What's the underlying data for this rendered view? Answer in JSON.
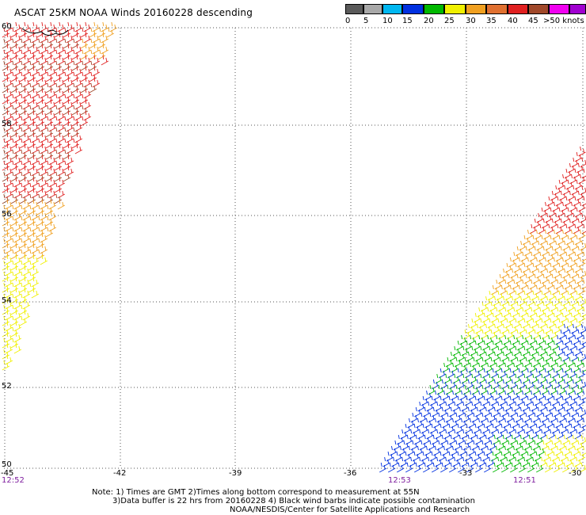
{
  "title": "ASCAT 25KM NOAA Winds 20160228 descending",
  "legend": {
    "colors": [
      "#5a5a5a",
      "#a8a8a8",
      "#00b7f0",
      "#0030e0",
      "#00b800",
      "#f0f000",
      "#f0a020",
      "#e07030",
      "#e02020",
      "#a0482a",
      "#f000f0",
      "#a000d0",
      "#400090"
    ],
    "labels": [
      "0",
      "5",
      "10",
      "15",
      "20",
      "25",
      "30",
      "35",
      "40",
      "45",
      ">50 knots"
    ]
  },
  "map": {
    "lat_labels": [
      "60",
      "58",
      "56",
      "54",
      "52",
      "50"
    ],
    "lon_labels": [
      "-45",
      "-42",
      "-39",
      "-36",
      "-33",
      "-30"
    ],
    "time_labels": [
      "12:52",
      "12:53",
      "12:51"
    ],
    "grid_color": "#555555"
  },
  "notes": {
    "line1": "Note: 1) Times are GMT 2)Times along bottom correspond to measurement at 55N",
    "line2": "3)Data buffer is 22 hrs from 20160228 4) Black wind barbs indicate possible contamination",
    "line3": "NOAA/NESDIS/Center for Satellite Applications and Research"
  }
}
